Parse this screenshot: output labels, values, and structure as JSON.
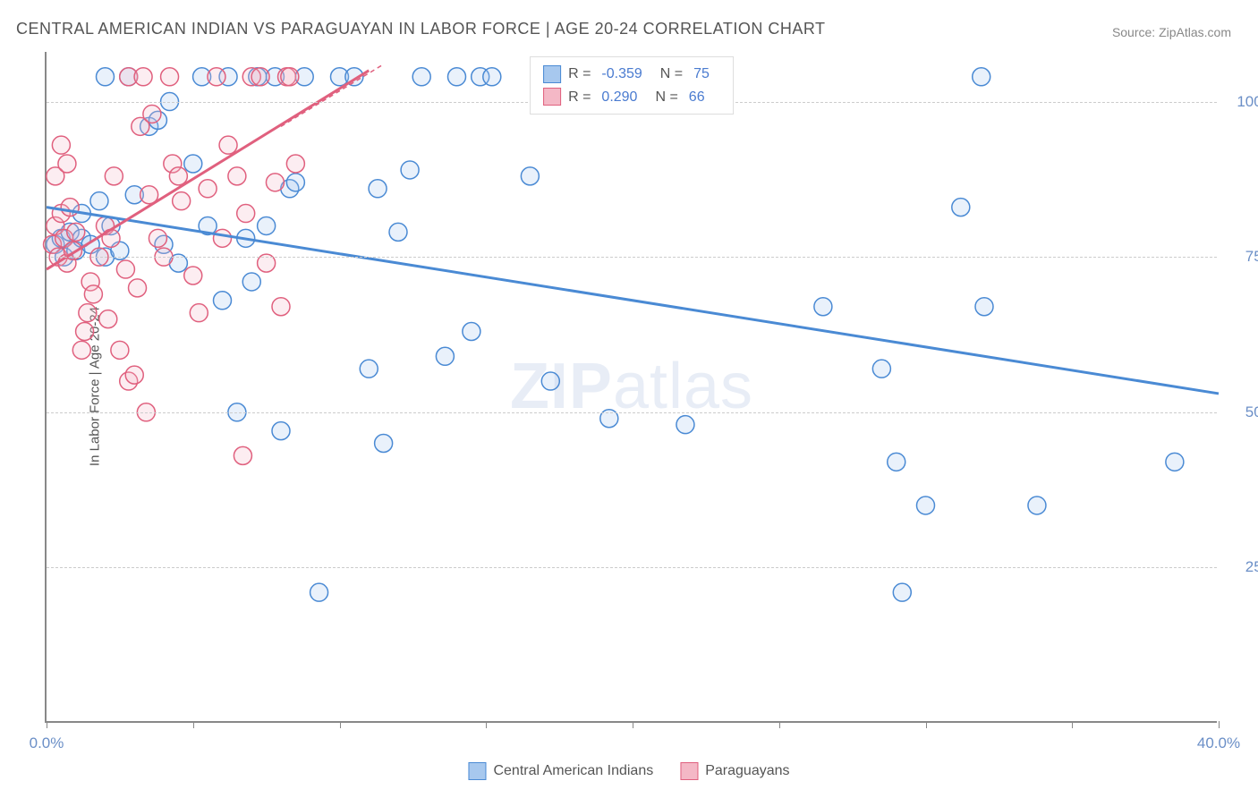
{
  "title": "CENTRAL AMERICAN INDIAN VS PARAGUAYAN IN LABOR FORCE | AGE 20-24 CORRELATION CHART",
  "source": "Source: ZipAtlas.com",
  "watermark_bold": "ZIP",
  "watermark_rest": "atlas",
  "chart": {
    "type": "scatter",
    "ylabel": "In Labor Force | Age 20-24",
    "xlim": [
      0,
      40
    ],
    "ylim": [
      0,
      108
    ],
    "yticks": [
      {
        "v": 25,
        "label": "25.0%"
      },
      {
        "v": 50,
        "label": "50.0%"
      },
      {
        "v": 75,
        "label": "75.0%"
      },
      {
        "v": 100,
        "label": "100.0%"
      }
    ],
    "xticks_major": [
      {
        "v": 0,
        "label": "0.0%"
      },
      {
        "v": 40,
        "label": "40.0%"
      }
    ],
    "xticks_minor": [
      5,
      10,
      15,
      20,
      25,
      30,
      35
    ],
    "grid_color": "#cccccc",
    "axis_color": "#888888",
    "background": "#ffffff",
    "marker_radius": 10,
    "marker_stroke_width": 1.5,
    "marker_fill_opacity": 0.25,
    "line_width": 3,
    "series": [
      {
        "name": "Central American Indians",
        "color_stroke": "#4a8ad4",
        "color_fill": "#a7c8ee",
        "R": "-0.359",
        "N": "75",
        "regression": {
          "x1": 0,
          "y1": 83,
          "x2": 40,
          "y2": 53
        },
        "points": [
          [
            0.3,
            77
          ],
          [
            0.5,
            78
          ],
          [
            0.6,
            75
          ],
          [
            0.8,
            79
          ],
          [
            1.0,
            76
          ],
          [
            1.2,
            78
          ],
          [
            1.5,
            77
          ],
          [
            1.2,
            82
          ],
          [
            1.8,
            84
          ],
          [
            2.0,
            75
          ],
          [
            2.2,
            80
          ],
          [
            2.5,
            76
          ],
          [
            2.8,
            104
          ],
          [
            3.0,
            85
          ],
          [
            2.0,
            104
          ],
          [
            3.5,
            96
          ],
          [
            3.8,
            97
          ],
          [
            4.0,
            77
          ],
          [
            4.2,
            100
          ],
          [
            4.5,
            74
          ],
          [
            5.0,
            90
          ],
          [
            5.3,
            104
          ],
          [
            5.5,
            80
          ],
          [
            6.0,
            68
          ],
          [
            6.2,
            104
          ],
          [
            6.5,
            50
          ],
          [
            6.8,
            78
          ],
          [
            7.0,
            71
          ],
          [
            7.2,
            104
          ],
          [
            7.5,
            80
          ],
          [
            7.8,
            104
          ],
          [
            8.0,
            47
          ],
          [
            8.3,
            86
          ],
          [
            8.5,
            87
          ],
          [
            8.8,
            104
          ],
          [
            9.3,
            21
          ],
          [
            10.0,
            104
          ],
          [
            10.5,
            104
          ],
          [
            11.0,
            57
          ],
          [
            11.3,
            86
          ],
          [
            11.5,
            45
          ],
          [
            12.0,
            79
          ],
          [
            12.4,
            89
          ],
          [
            12.8,
            104
          ],
          [
            13.6,
            59
          ],
          [
            14.0,
            104
          ],
          [
            14.5,
            63
          ],
          [
            14.8,
            104
          ],
          [
            15.2,
            104
          ],
          [
            16.5,
            88
          ],
          [
            17.2,
            55
          ],
          [
            18.5,
            104
          ],
          [
            19.2,
            49
          ],
          [
            21.8,
            48
          ],
          [
            26.5,
            67
          ],
          [
            28.5,
            57
          ],
          [
            29.0,
            42
          ],
          [
            29.2,
            21
          ],
          [
            30.0,
            35
          ],
          [
            31.2,
            83
          ],
          [
            31.9,
            104
          ],
          [
            32.0,
            67
          ],
          [
            33.8,
            35
          ],
          [
            38.5,
            42
          ]
        ]
      },
      {
        "name": "Paraguayans",
        "color_stroke": "#e0607e",
        "color_fill": "#f4b8c6",
        "R": "0.290",
        "N": "66",
        "regression": {
          "x1": 0,
          "y1": 73,
          "x2": 11,
          "y2": 105
        },
        "dashed_ext": {
          "x1": 8.0,
          "y1": 96,
          "x2": 11.5,
          "y2": 106
        },
        "points": [
          [
            0.2,
            77
          ],
          [
            0.3,
            80
          ],
          [
            0.4,
            75
          ],
          [
            0.5,
            82
          ],
          [
            0.6,
            78
          ],
          [
            0.7,
            74
          ],
          [
            0.8,
            83
          ],
          [
            0.9,
            76
          ],
          [
            1.0,
            79
          ],
          [
            0.3,
            88
          ],
          [
            0.5,
            93
          ],
          [
            0.7,
            90
          ],
          [
            1.2,
            60
          ],
          [
            1.3,
            63
          ],
          [
            1.4,
            66
          ],
          [
            1.5,
            71
          ],
          [
            1.6,
            69
          ],
          [
            1.8,
            75
          ],
          [
            2.0,
            80
          ],
          [
            2.1,
            65
          ],
          [
            2.2,
            78
          ],
          [
            2.3,
            88
          ],
          [
            2.5,
            60
          ],
          [
            2.7,
            73
          ],
          [
            2.8,
            104
          ],
          [
            2.8,
            55
          ],
          [
            3.0,
            56
          ],
          [
            3.1,
            70
          ],
          [
            3.2,
            96
          ],
          [
            3.3,
            104
          ],
          [
            3.4,
            50
          ],
          [
            3.5,
            85
          ],
          [
            3.6,
            98
          ],
          [
            3.8,
            78
          ],
          [
            4.0,
            75
          ],
          [
            4.2,
            104
          ],
          [
            4.3,
            90
          ],
          [
            4.5,
            88
          ],
          [
            4.6,
            84
          ],
          [
            5.0,
            72
          ],
          [
            5.2,
            66
          ],
          [
            5.5,
            86
          ],
          [
            5.8,
            104
          ],
          [
            6.0,
            78
          ],
          [
            6.2,
            93
          ],
          [
            6.5,
            88
          ],
          [
            6.7,
            43
          ],
          [
            6.8,
            82
          ],
          [
            7.0,
            104
          ],
          [
            7.3,
            104
          ],
          [
            7.5,
            74
          ],
          [
            7.8,
            87
          ],
          [
            8.0,
            67
          ],
          [
            8.2,
            104
          ],
          [
            8.3,
            104
          ],
          [
            8.5,
            90
          ]
        ]
      }
    ],
    "stat_legend_labels": {
      "R": "R =",
      "N": "N ="
    },
    "bottom_legend": [
      {
        "label": "Central American Indians",
        "stroke": "#4a8ad4",
        "fill": "#a7c8ee"
      },
      {
        "label": "Paraguayans",
        "stroke": "#e0607e",
        "fill": "#f4b8c6"
      }
    ]
  }
}
